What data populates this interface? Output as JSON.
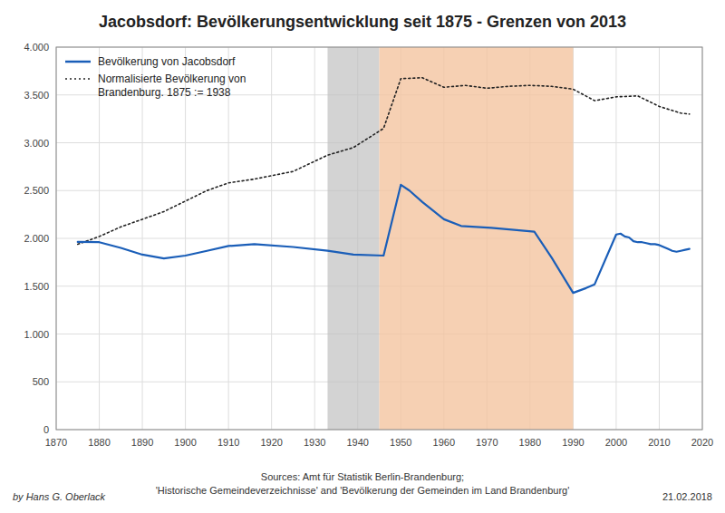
{
  "chart_data": {
    "type": "line",
    "title": "Jacobsdorf: Bevölkerungsentwicklung seit 1875 - Grenzen von 2013",
    "xlim": [
      1870,
      2020
    ],
    "ylim": [
      0,
      4000
    ],
    "xticks": [
      1870,
      1880,
      1890,
      1900,
      1910,
      1920,
      1930,
      1940,
      1950,
      1960,
      1970,
      1980,
      1990,
      2000,
      2010,
      2020
    ],
    "yticks": [
      0,
      500,
      {
        "value": 1000,
        "label": "1.000"
      },
      {
        "value": 1500,
        "label": "1.500"
      },
      {
        "value": 2000,
        "label": "2.000"
      },
      {
        "value": 2500,
        "label": "2.500"
      },
      {
        "value": 3000,
        "label": "3.000"
      },
      {
        "value": 3500,
        "label": "3.500"
      },
      {
        "value": 4000,
        "label": "4.000"
      }
    ],
    "grid": true,
    "legend": "upper left",
    "bands": [
      {
        "start": 1933,
        "end": 1945,
        "color": "#c0c0c0"
      },
      {
        "start": 1945,
        "end": 1990,
        "color": "#f4c4a0"
      }
    ],
    "series": [
      {
        "name": "Bevölkerung von Jacobsdorf",
        "color": "#1a5eb8",
        "line_style": "solid",
        "x": [
          1875,
          1880,
          1885,
          1890,
          1895,
          1900,
          1905,
          1910,
          1916,
          1925,
          1933,
          1939,
          1946,
          1950,
          1952,
          1955,
          1960,
          1964,
          1971,
          1981,
          1985,
          1990,
          1993,
          1995,
          2000,
          2001,
          2002,
          2003,
          2004,
          2005,
          2006,
          2007,
          2008,
          2009,
          2010,
          2011,
          2012,
          2013,
          2014,
          2015,
          2016,
          2017
        ],
        "values": [
          1963,
          1960,
          1900,
          1830,
          1790,
          1820,
          1870,
          1920,
          1940,
          1910,
          1870,
          1830,
          1820,
          2560,
          2500,
          2380,
          2200,
          2130,
          2110,
          2070,
          1800,
          1430,
          1480,
          1520,
          2040,
          2050,
          2020,
          2010,
          1970,
          1960,
          1960,
          1950,
          1940,
          1940,
          1930,
          1910,
          1890,
          1870,
          1860,
          1870,
          1880,
          1890
        ]
      },
      {
        "name": "Normalisierte Bevölkerung von\nBrandenburg. 1875 := 1938",
        "color": "#222222",
        "line_style": "dotted",
        "x": [
          1875,
          1880,
          1885,
          1890,
          1895,
          1900,
          1905,
          1910,
          1916,
          1925,
          1933,
          1939,
          1946,
          1950,
          1955,
          1960,
          1965,
          1970,
          1975,
          1980,
          1985,
          1990,
          1995,
          2000,
          2005,
          2010,
          2015,
          2017
        ],
        "values": [
          1938,
          2020,
          2120,
          2200,
          2280,
          2390,
          2500,
          2580,
          2620,
          2700,
          2870,
          2950,
          3150,
          3670,
          3680,
          3580,
          3600,
          3570,
          3590,
          3600,
          3590,
          3560,
          3440,
          3480,
          3490,
          3380,
          3310,
          3300
        ]
      }
    ],
    "annotations": [
      "by Hans G. Oberlack",
      "Sources: Amt für Statistik Berlin-Brandenburg;",
      "'Historische Gemeindeverzeichnisse' and 'Bevölkerung der Gemeinden im Land Brandenburg'",
      "21.02.2018"
    ]
  }
}
